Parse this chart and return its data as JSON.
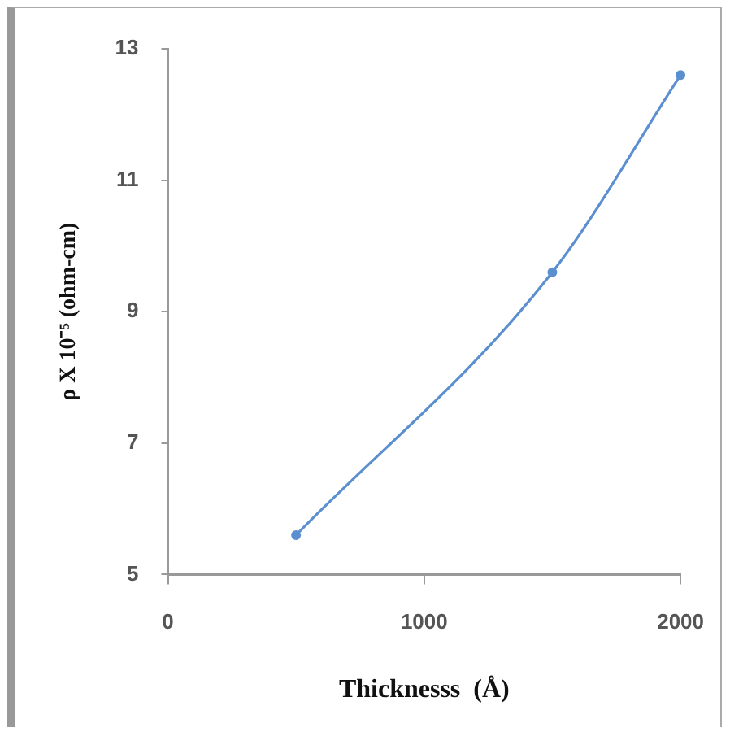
{
  "chart_data": {
    "type": "line",
    "xlabel": "Thicknesss  (Å)",
    "ylabel": "ρ X 10⁻⁵ (ohm-cm)",
    "x": [
      500,
      1500,
      2000
    ],
    "series": [
      {
        "color": "#5b8fcf",
        "values": [
          5.6,
          9.6,
          12.6
        ]
      }
    ],
    "xlim": [
      0,
      2000
    ],
    "xticks": [
      0,
      1000,
      2000
    ],
    "ylim": [
      5,
      13
    ],
    "yticks": [
      5,
      7,
      9,
      11,
      13
    ],
    "marker": "circle",
    "line_style": "solid",
    "legend": false
  }
}
